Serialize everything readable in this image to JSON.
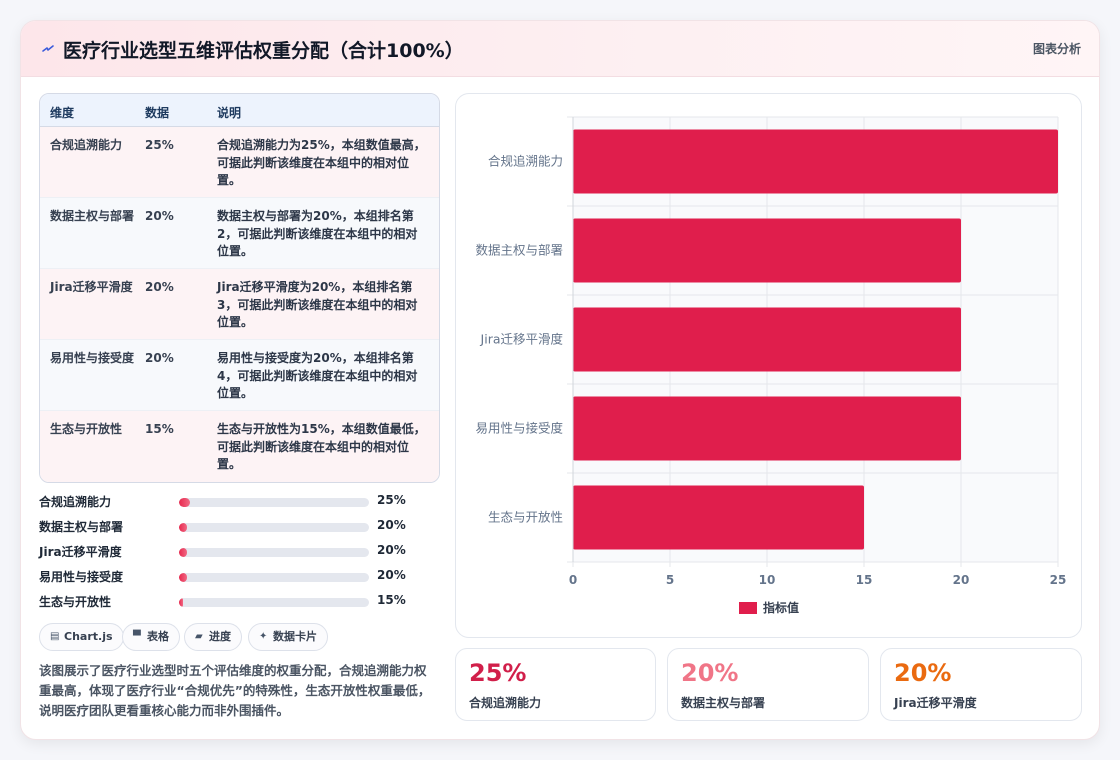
{
  "header": {
    "title": "医疗行业选型五维评估权重分配（合计100%）",
    "tag": "图表分析",
    "icon": "lightning-icon"
  },
  "table": {
    "headers": [
      "维度",
      "数据",
      "说明"
    ],
    "rows": [
      {
        "dim": "合规追溯能力",
        "value": "25%",
        "desc": "合规追溯能力为25%，本组数值最高，可据此判断该维度在本组中的相对位置。"
      },
      {
        "dim": "数据主权与部署",
        "value": "20%",
        "desc": "数据主权与部署为20%，本组排名第2，可据此判断该维度在本组中的相对位置。"
      },
      {
        "dim": "Jira迁移平滑度",
        "value": "20%",
        "desc": "Jira迁移平滑度为20%，本组排名第3，可据此判断该维度在本组中的相对位置。"
      },
      {
        "dim": "易用性与接受度",
        "value": "20%",
        "desc": "易用性与接受度为20%，本组排名第4，可据此判断该维度在本组中的相对位置。"
      },
      {
        "dim": "生态与开放性",
        "value": "15%",
        "desc": "生态与开放性为15%，本组数值最低，可据此判断该维度在本组中的相对位置。"
      }
    ]
  },
  "progress": [
    {
      "label": "合规追溯能力",
      "value": "25%",
      "pct": 6
    },
    {
      "label": "数据主权与部署",
      "value": "20%",
      "pct": 4
    },
    {
      "label": "Jira迁移平滑度",
      "value": "20%",
      "pct": 4
    },
    {
      "label": "易用性与接受度",
      "value": "20%",
      "pct": 4
    },
    {
      "label": "生态与开放性",
      "value": "15%",
      "pct": 2
    }
  ],
  "chips": [
    {
      "icon": "chart-icon",
      "glyph": "▤",
      "label": "Chart.js"
    },
    {
      "icon": "table-icon",
      "glyph": "▀",
      "label": "表格"
    },
    {
      "icon": "progress-icon",
      "glyph": "▰",
      "label": "进度"
    },
    {
      "icon": "sparkle-icon",
      "glyph": "✦",
      "label": "数据卡片"
    }
  ],
  "description": "该图展示了医疗行业选型时五个评估维度的权重分配，合规追溯能力权重最高，体现了医疗行业“合规优先”的特殊性，生态开放性权重最低，说明医疗团队更看重核心能力而非外围插件。",
  "stats": [
    {
      "value": "25%",
      "label": "合规追溯能力",
      "color": "#d11f4a"
    },
    {
      "value": "20%",
      "label": "数据主权与部署",
      "color": "#f07587"
    },
    {
      "value": "20%",
      "label": "Jira迁移平滑度",
      "color": "#ea6a10"
    }
  ],
  "chart_data": {
    "type": "bar",
    "orientation": "horizontal",
    "categories": [
      "合规追溯能力",
      "数据主权与部署",
      "Jira迁移平滑度",
      "易用性与接受度",
      "生态与开放性"
    ],
    "series": [
      {
        "name": "指标值",
        "values": [
          25,
          20,
          20,
          20,
          15
        ],
        "color": "#e01e4c"
      }
    ],
    "xlim": [
      0,
      25
    ],
    "xticks": [
      0,
      5,
      10,
      15,
      20,
      25
    ],
    "grid": true,
    "legend": "bottom"
  }
}
